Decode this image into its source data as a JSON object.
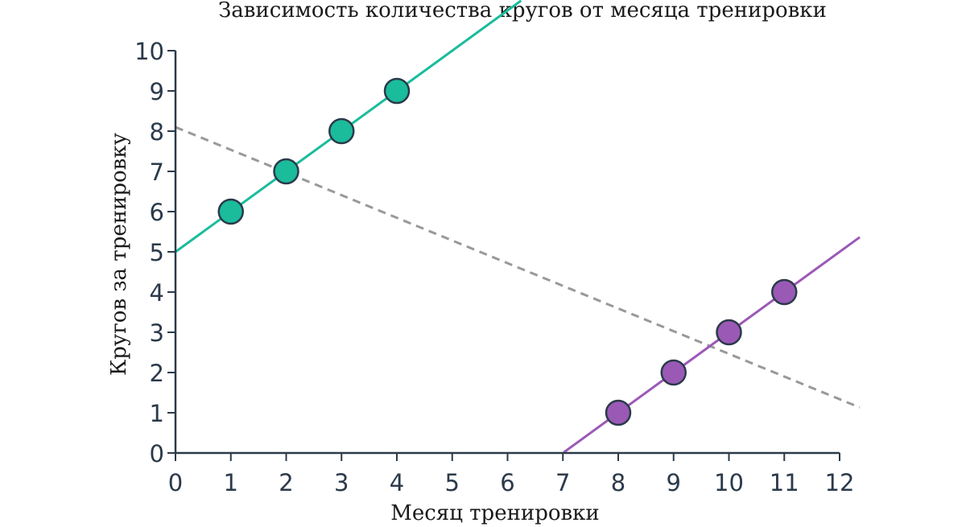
{
  "chart_data": {
    "type": "scatter",
    "title": "Зависимость количества кругов от месяца тренировки",
    "xlabel": "Месяц тренировки",
    "ylabel": "Кругов за тренировку",
    "xlim": [
      0,
      12
    ],
    "ylim": [
      0,
      10
    ],
    "x_ticks": [
      "0",
      "1",
      "2",
      "3",
      "4",
      "5",
      "6",
      "7",
      "8",
      "9",
      "10",
      "11",
      "12"
    ],
    "y_ticks": [
      "0",
      "1",
      "2",
      "3",
      "4",
      "5",
      "6",
      "7",
      "8",
      "9",
      "10"
    ],
    "grid": false,
    "series": [
      {
        "color": "#1abc9c",
        "points": [
          {
            "x": 1,
            "y": 6
          },
          {
            "x": 2,
            "y": 7
          },
          {
            "x": 3,
            "y": 8
          },
          {
            "x": 4,
            "y": 9
          }
        ],
        "fit_line": {
          "slope": 1,
          "intercept": 5
        }
      },
      {
        "color": "#9b59b6",
        "points": [
          {
            "x": 8,
            "y": 1
          },
          {
            "x": 9,
            "y": 2
          },
          {
            "x": 10,
            "y": 3
          },
          {
            "x": 11,
            "y": 4
          }
        ],
        "fit_line": {
          "slope": 1,
          "intercept": -7
        }
      }
    ],
    "overall_trend_line": {
      "color": "#999999",
      "style": "dashed",
      "slope": -0.5636,
      "intercept": 8.1
    }
  }
}
